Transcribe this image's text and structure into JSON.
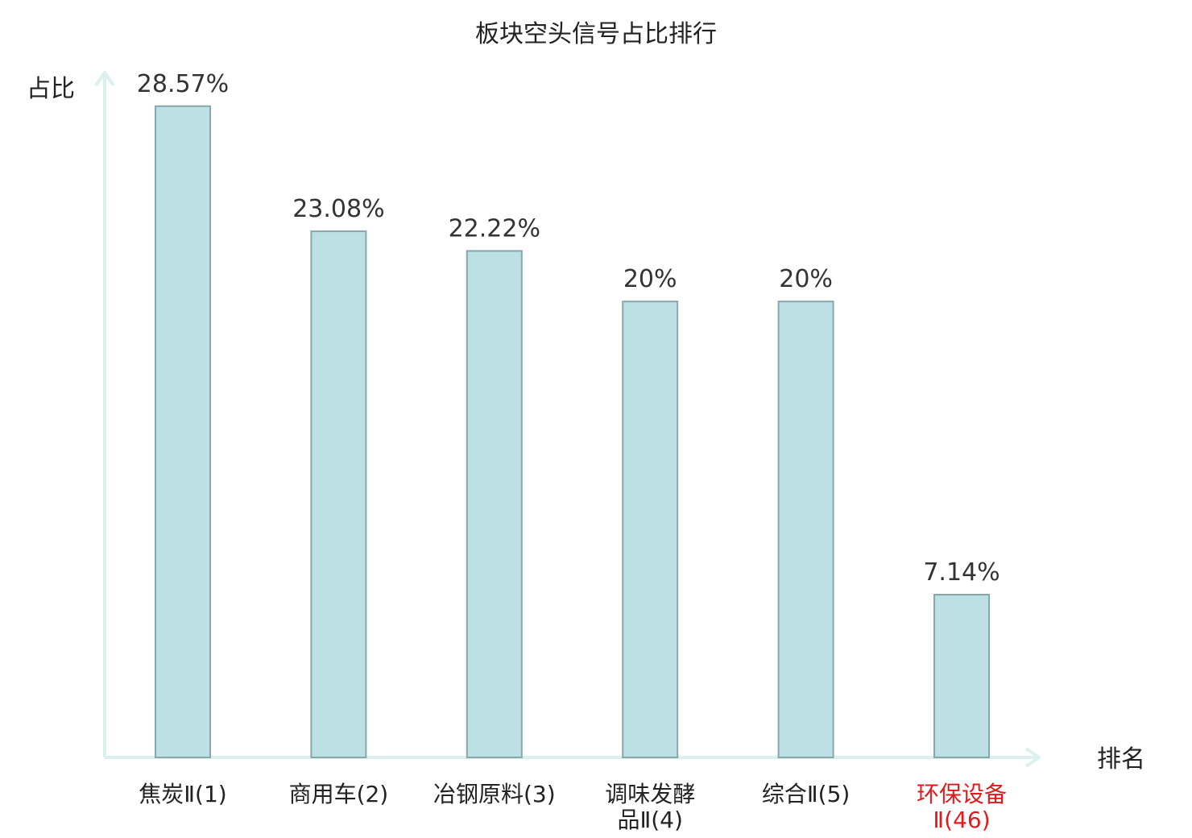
{
  "chart_data": {
    "type": "bar",
    "title": "板块空头信号占比排行",
    "xlabel": "排名",
    "ylabel": "占比",
    "categories": [
      [
        "焦炭Ⅱ(1)"
      ],
      [
        "商用车(2)"
      ],
      [
        "冶钢原料(3)"
      ],
      [
        "调味发酵",
        "品Ⅱ(4)"
      ],
      [
        "综合Ⅱ(5)"
      ],
      [
        "环保设备",
        "Ⅱ(46)"
      ]
    ],
    "values": [
      28.57,
      23.08,
      22.22,
      20,
      20,
      7.14
    ],
    "value_labels": [
      "28.57%",
      "23.08%",
      "22.22%",
      "20%",
      "20%",
      "7.14%"
    ],
    "highlight_index": 5,
    "ylim": [
      0,
      30
    ],
    "grid": false,
    "legend": "none"
  },
  "colors": {
    "bar_fill": "#bce0e3",
    "bar_stroke": "#86a8aa",
    "axis": "#dcf0ee",
    "text": "#222222",
    "highlight": "#e31a1c"
  }
}
